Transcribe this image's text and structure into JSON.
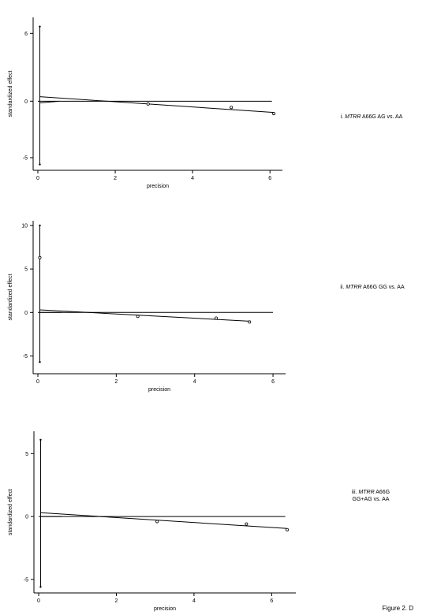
{
  "figure_label": "Figure 2. D",
  "chart_data": [
    {
      "type": "scatter",
      "panel": "i",
      "title_prefix": "i.",
      "title_gene": "MTRR",
      "title_rest": "A66G AG vs. AA",
      "xlabel": "precision",
      "ylabel": "standardized effect",
      "xticks": [
        0,
        2,
        4,
        6
      ],
      "yticks": [
        -5,
        0,
        6
      ],
      "xlim": [
        0,
        6.2
      ],
      "ylim": [
        -5.7,
        7
      ],
      "points": [
        {
          "x": 2.85,
          "y": -0.25
        },
        {
          "x": 5.0,
          "y": -0.55
        },
        {
          "x": 6.1,
          "y": -1.1
        }
      ],
      "ci_bar": {
        "x": 0.05,
        "y_low": -5.6,
        "y_high": 6.6
      },
      "zero_line": {
        "y": 0,
        "x_end": 6.05
      },
      "regression_line": {
        "x0": 0.05,
        "y0": 0.4,
        "x1": 6.1,
        "y1": -1.0
      },
      "short_line": {
        "x0": 0.05,
        "y0": -0.15,
        "x1": 0.55,
        "y1": 0.0
      }
    },
    {
      "type": "scatter",
      "panel": "ii",
      "title_prefix": "ii.",
      "title_gene": "MTRR",
      "title_rest": "A66G GG vs. AA",
      "xlabel": "precision",
      "ylabel": "standardized effect",
      "xticks": [
        0,
        2,
        4,
        6
      ],
      "yticks": [
        -5,
        0,
        5,
        10
      ],
      "xlim": [
        0,
        6.2
      ],
      "ylim": [
        -6.5,
        10
      ],
      "points": [
        {
          "x": 0.05,
          "y": 6.3
        },
        {
          "x": 2.55,
          "y": -0.45
        },
        {
          "x": 4.55,
          "y": -0.65
        },
        {
          "x": 5.4,
          "y": -1.1
        }
      ],
      "ci_bar": {
        "x": 0.05,
        "y_low": -5.7,
        "y_high": 10
      },
      "zero_line": {
        "y": 0,
        "x_end": 6.0
      },
      "regression_line": {
        "x0": 0.05,
        "y0": 0.3,
        "x1": 5.4,
        "y1": -1.0
      },
      "short_line": {
        "x0": 0.05,
        "y0": 0.0,
        "x1": 0.6,
        "y1": 0.0
      }
    },
    {
      "type": "scatter",
      "panel": "iii",
      "title_prefix": "iii.",
      "title_gene": "MTRR",
      "title_rest": "A66G",
      "title_line2": "GG+AG vs. AA",
      "xlabel": "precision",
      "ylabel": "standardized effect",
      "xticks": [
        0,
        2,
        4,
        6
      ],
      "yticks": [
        -5,
        0,
        5
      ],
      "xlim": [
        0,
        6.5
      ],
      "ylim": [
        -5.7,
        6.4
      ],
      "points": [
        {
          "x": 3.05,
          "y": -0.4
        },
        {
          "x": 5.35,
          "y": -0.6
        },
        {
          "x": 6.4,
          "y": -1.05
        }
      ],
      "ci_bar": {
        "x": 0.05,
        "y_low": -5.6,
        "y_high": 6.1
      },
      "zero_line": {
        "y": 0,
        "x_end": 6.35
      },
      "regression_line": {
        "x0": 0.05,
        "y0": 0.3,
        "x1": 6.4,
        "y1": -0.95
      },
      "short_line": {
        "x0": 0.05,
        "y0": 0.0,
        "x1": 0.6,
        "y1": 0.0
      }
    }
  ]
}
